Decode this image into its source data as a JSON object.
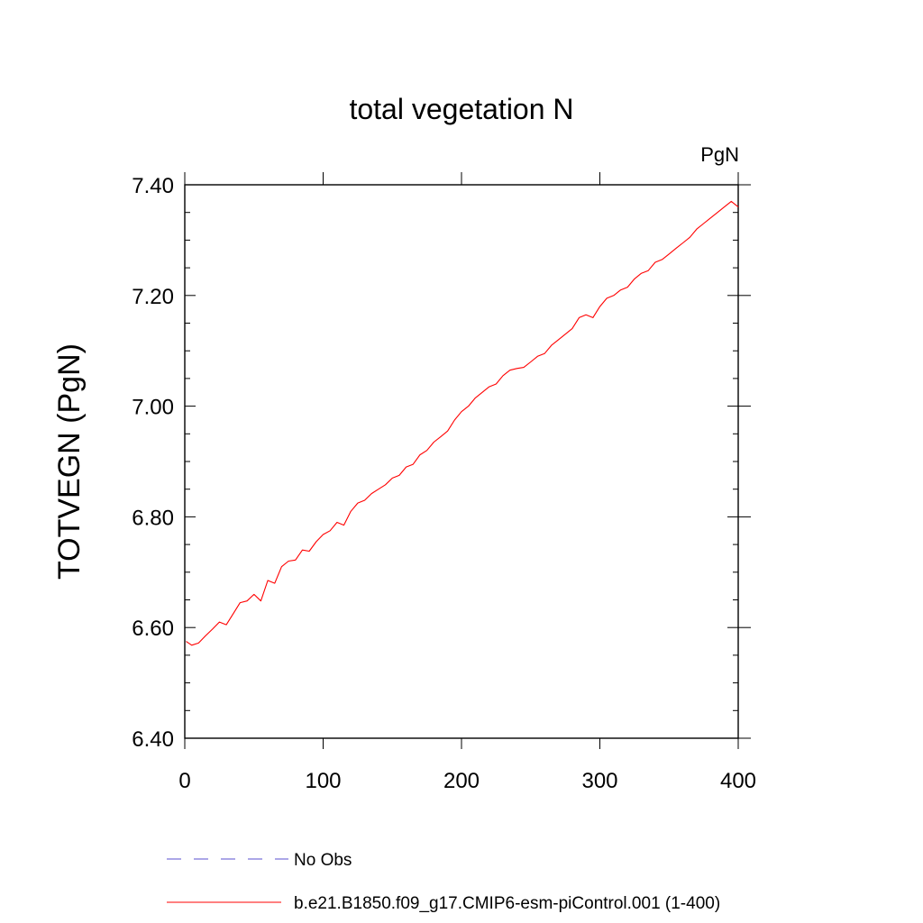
{
  "chart_data": {
    "type": "line",
    "title": "total vegetation N",
    "units_label": "PgN",
    "ylabel": "TOTVEGN  (PgN)",
    "xlabel": "",
    "xlim": [
      0,
      400
    ],
    "ylim": [
      6.4,
      7.4
    ],
    "x_ticks": [
      0,
      100,
      200,
      300,
      400
    ],
    "x_tick_labels": [
      "0",
      "100",
      "200",
      "300",
      "400"
    ],
    "y_ticks": [
      6.4,
      6.6,
      6.8,
      7.0,
      7.2,
      7.4
    ],
    "y_tick_labels": [
      "6.40",
      "6.60",
      "6.80",
      "7.00",
      "7.20",
      "7.40"
    ],
    "grid": false,
    "legend_position": "bottom",
    "series": [
      {
        "name": "b.e21.B1850.f09_g17.CMIP6-esm-piControl.001 (1-400)",
        "color": "#ff0000",
        "x": [
          1,
          5,
          10,
          15,
          20,
          25,
          30,
          35,
          40,
          45,
          50,
          55,
          60,
          65,
          70,
          75,
          80,
          85,
          90,
          95,
          100,
          105,
          110,
          115,
          120,
          125,
          130,
          135,
          140,
          145,
          150,
          155,
          160,
          165,
          170,
          175,
          180,
          185,
          190,
          195,
          200,
          205,
          210,
          215,
          220,
          225,
          230,
          235,
          240,
          245,
          250,
          255,
          260,
          265,
          270,
          275,
          280,
          285,
          290,
          295,
          300,
          305,
          310,
          315,
          320,
          325,
          330,
          335,
          340,
          345,
          350,
          355,
          360,
          365,
          370,
          375,
          380,
          385,
          390,
          395,
          400
        ],
        "values": [
          6.575,
          6.568,
          6.572,
          6.585,
          6.597,
          6.61,
          6.605,
          6.625,
          6.645,
          6.648,
          6.66,
          6.648,
          6.685,
          6.68,
          6.71,
          6.72,
          6.722,
          6.74,
          6.738,
          6.755,
          6.768,
          6.775,
          6.79,
          6.785,
          6.81,
          6.825,
          6.83,
          6.842,
          6.85,
          6.858,
          6.87,
          6.875,
          6.89,
          6.895,
          6.912,
          6.92,
          6.935,
          6.945,
          6.955,
          6.975,
          6.99,
          7.0,
          7.015,
          7.025,
          7.035,
          7.04,
          7.055,
          7.065,
          7.068,
          7.07,
          7.08,
          7.09,
          7.095,
          7.11,
          7.12,
          7.13,
          7.14,
          7.16,
          7.165,
          7.16,
          7.18,
          7.195,
          7.2,
          7.21,
          7.215,
          7.23,
          7.24,
          7.245,
          7.26,
          7.265,
          7.275,
          7.285,
          7.295,
          7.305,
          7.32,
          7.33,
          7.34,
          7.35,
          7.36,
          7.37,
          7.36
        ]
      },
      {
        "name": "No Obs",
        "color": "#5a4fcf",
        "x": [],
        "values": []
      }
    ]
  }
}
